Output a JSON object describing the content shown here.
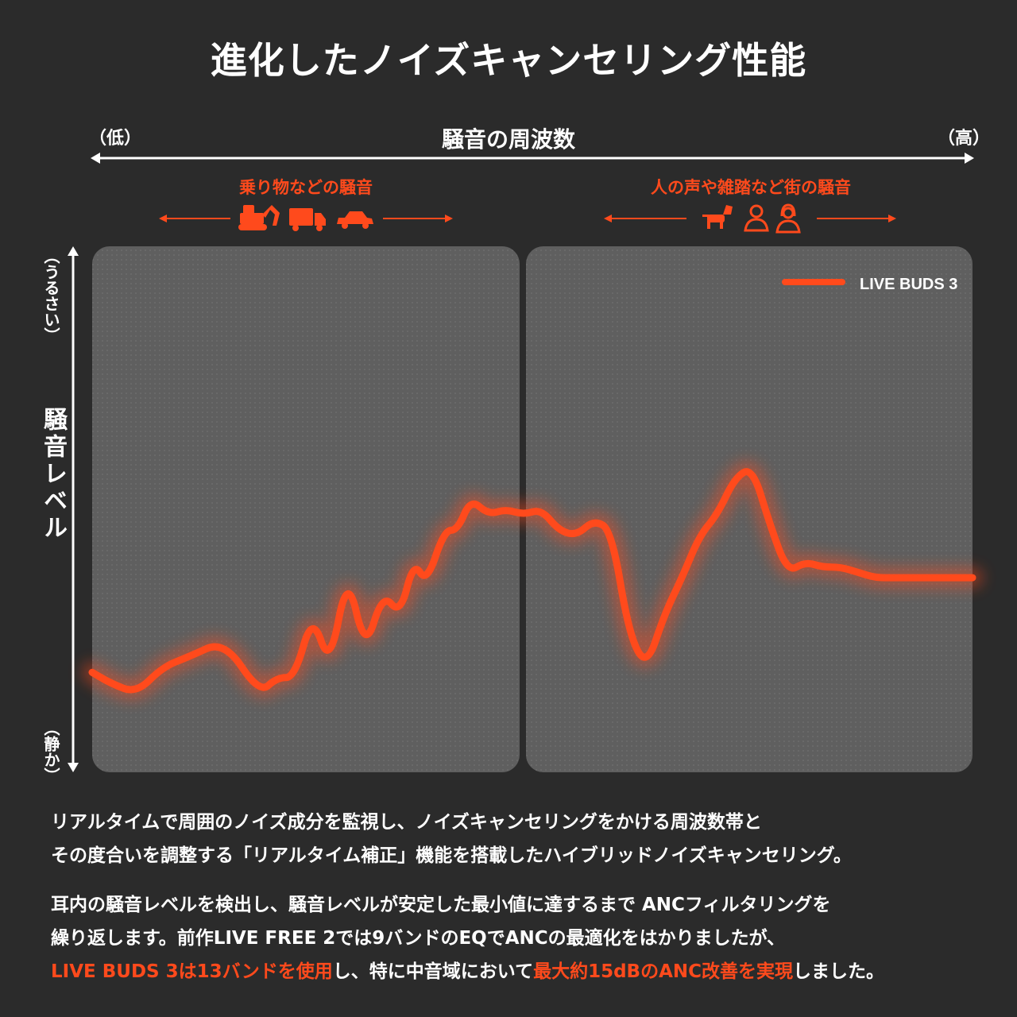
{
  "title": "進化したノイズキャンセリング性能",
  "x_axis": {
    "label": "騒音の周波数",
    "low": "（低）",
    "high": "（高）"
  },
  "y_axis": {
    "label": "騒音レベル",
    "top": "（うるさい）",
    "bottom": "（静か）"
  },
  "groups": [
    {
      "label": "乗り物などの騒音",
      "icons": [
        "excavator-icon",
        "truck-icon",
        "car-icon"
      ]
    },
    {
      "label": "人の声や雑踏など街の騒音",
      "icons": [
        "dog-icon",
        "man-icon",
        "woman-icon"
      ]
    }
  ],
  "colors": {
    "accent": "#ff4a1c",
    "background": "#2b2b2b",
    "panel": "#5f5f5f"
  },
  "chart_data": {
    "type": "line",
    "title": "進化したノイズキャンセリング性能",
    "xlabel": "騒音の周波数",
    "ylabel": "騒音レベル",
    "xlim": [
      0,
      100
    ],
    "ylim": [
      0,
      100
    ],
    "grid": false,
    "legend": "top-right",
    "series": [
      {
        "name": "LIVE BUDS 3",
        "color": "#ff4a1c",
        "x": [
          0,
          2,
          5,
          8,
          11,
          15,
          19,
          21,
          23,
          25,
          27,
          29,
          31,
          33,
          35,
          36.5,
          38,
          40,
          41.5,
          43,
          45,
          47,
          49,
          51,
          53,
          55,
          57,
          59,
          61,
          63,
          65,
          67,
          69,
          71,
          73,
          75,
          77,
          79,
          81,
          83,
          85,
          87,
          89,
          91,
          93,
          95,
          97,
          99,
          100
        ],
        "y": [
          19,
          17,
          15,
          20,
          22,
          25,
          15,
          18,
          18,
          30,
          20,
          38,
          23,
          34,
          30,
          40,
          36,
          46,
          46,
          52,
          49,
          50,
          49,
          50,
          46,
          45,
          48,
          46,
          26,
          20,
          30,
          37,
          45,
          49,
          56,
          58,
          47,
          38,
          40,
          39,
          39,
          38,
          37,
          37,
          37,
          37,
          37,
          37,
          37
        ]
      }
    ]
  },
  "description": {
    "p1_line1": "リアルタイムで周囲のノイズ成分を監視し、ノイズキャンセリングをかける周波数帯と",
    "p1_line2": "その度合いを調整する「リアルタイム補正」機能を搭載したハイブリッドノイズキャンセリング。",
    "p2_line1": "耳内の騒音レベルを検出し、騒音レベルが安定した最小値に達するまで ANCフィルタリングを",
    "p2_line2": "繰り返します。前作LIVE FREE 2では9バンドのEQでANCの最適化をはかりましたが、",
    "p2_line3_a": "LIVE BUDS 3は13バンドを使用",
    "p2_line3_b": "し、特に中音域において",
    "p2_line3_c": "最大約15dBのANC改善を実現",
    "p2_line3_d": "しました。"
  }
}
